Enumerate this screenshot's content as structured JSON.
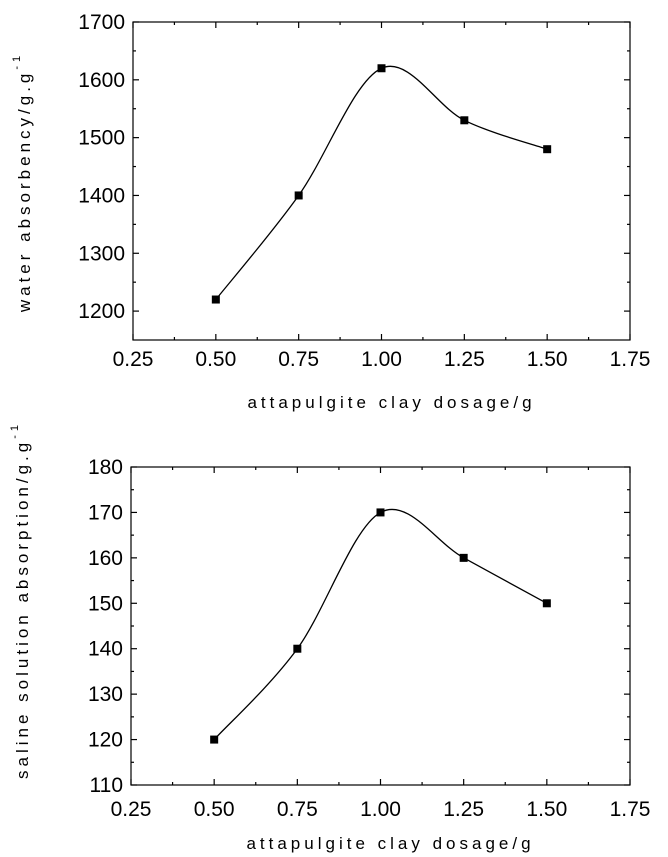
{
  "chart_data": [
    {
      "type": "scatter",
      "xlabel": "attapulgite clay dosage/g",
      "ylabel": "water absorbency/g.g",
      "ylabel_sup": "-1",
      "xlim": [
        0.25,
        1.75
      ],
      "ylim": [
        1150,
        1700
      ],
      "x_ticks": [
        "0.25",
        "0.50",
        "0.75",
        "1.00",
        "1.25",
        "1.50",
        "1.75"
      ],
      "y_ticks": [
        "1200",
        "1300",
        "1400",
        "1500",
        "1600",
        "1700"
      ],
      "grid": false,
      "series": [
        {
          "x": [
            0.5,
            0.75,
            1.0,
            1.25,
            1.5
          ],
          "y": [
            1220,
            1400,
            1620,
            1530,
            1480
          ]
        }
      ]
    },
    {
      "type": "scatter",
      "xlabel": "attapulgite clay dosage/g",
      "ylabel": "saline solution absorption/g.g",
      "ylabel_sup": "-1",
      "xlim": [
        0.25,
        1.75
      ],
      "ylim": [
        110,
        180
      ],
      "x_ticks": [
        "0.25",
        "0.50",
        "0.75",
        "1.00",
        "1.25",
        "1.50",
        "1.75"
      ],
      "y_ticks": [
        "110",
        "120",
        "130",
        "140",
        "150",
        "160",
        "170",
        "180"
      ],
      "grid": false,
      "series": [
        {
          "x": [
            0.5,
            0.75,
            1.0,
            1.25,
            1.5
          ],
          "y": [
            120,
            140,
            170,
            160,
            150
          ]
        }
      ]
    }
  ]
}
